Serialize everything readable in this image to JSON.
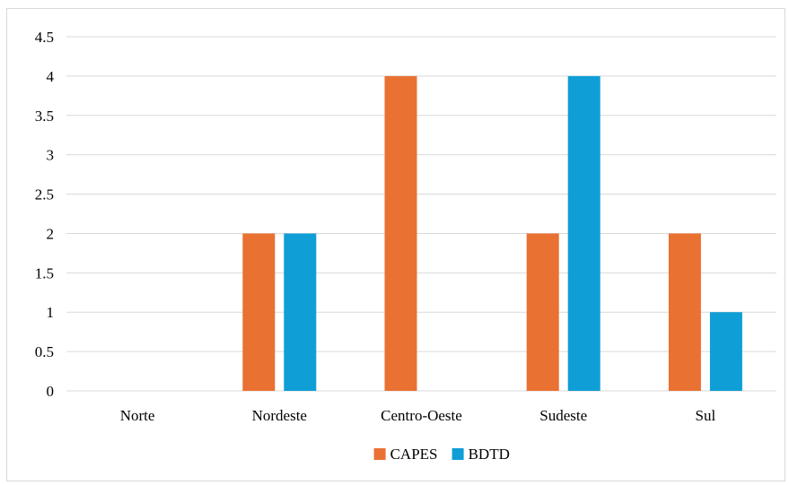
{
  "chart_data": {
    "type": "bar",
    "categories": [
      "Norte",
      "Nordeste",
      "Centro-Oeste",
      "Sudeste",
      "Sul"
    ],
    "series": [
      {
        "name": "CAPES",
        "color": "#e97132",
        "values": [
          0,
          2,
          4,
          2,
          2
        ]
      },
      {
        "name": "BDTD",
        "color": "#0f9ed5",
        "values": [
          0,
          2,
          0,
          4,
          1
        ]
      }
    ],
    "y_ticks": [
      "0",
      "0.5",
      "1",
      "1.5",
      "2",
      "2.5",
      "3",
      "3.5",
      "4",
      "4.5"
    ],
    "ylim": [
      0,
      4.5
    ],
    "grid": true,
    "legend_position": "bottom",
    "gridline_color": "#d9d9d9",
    "title": "",
    "xlabel": "",
    "ylabel": ""
  }
}
